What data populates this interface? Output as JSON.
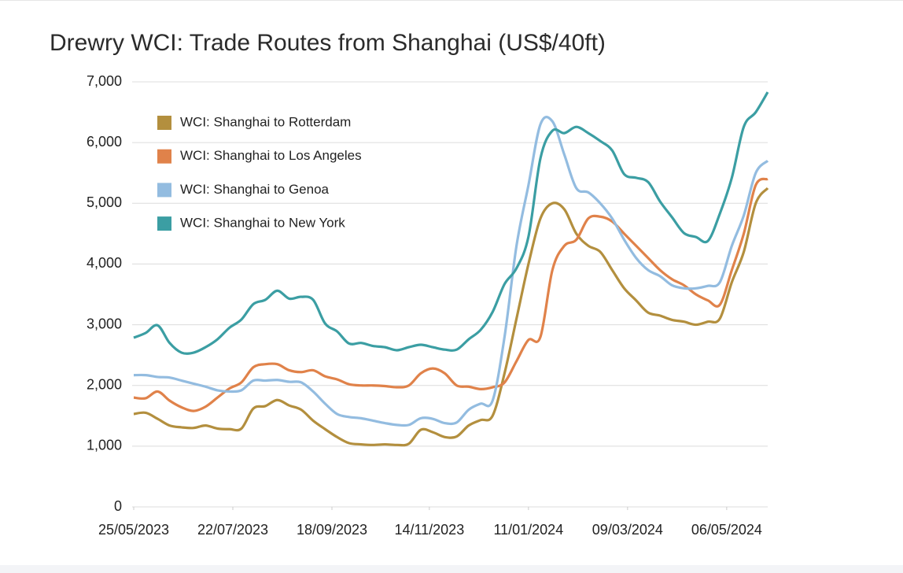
{
  "chart_data": {
    "type": "line",
    "title": "Drewry WCI: Trade Routes from Shanghai (US$/40ft)",
    "x": [
      "2023-05-25",
      "2023-06-01",
      "2023-06-08",
      "2023-06-15",
      "2023-06-22",
      "2023-06-29",
      "2023-07-06",
      "2023-07-13",
      "2023-07-20",
      "2023-07-27",
      "2023-08-03",
      "2023-08-10",
      "2023-08-17",
      "2023-08-24",
      "2023-08-31",
      "2023-09-07",
      "2023-09-14",
      "2023-09-21",
      "2023-09-28",
      "2023-10-05",
      "2023-10-12",
      "2023-10-19",
      "2023-10-26",
      "2023-11-02",
      "2023-11-09",
      "2023-11-16",
      "2023-11-23",
      "2023-11-30",
      "2023-12-07",
      "2023-12-14",
      "2023-12-21",
      "2023-12-28",
      "2024-01-04",
      "2024-01-11",
      "2024-01-18",
      "2024-01-25",
      "2024-02-01",
      "2024-02-08",
      "2024-02-15",
      "2024-02-22",
      "2024-02-29",
      "2024-03-07",
      "2024-03-14",
      "2024-03-21",
      "2024-03-28",
      "2024-04-04",
      "2024-04-11",
      "2024-04-18",
      "2024-04-25",
      "2024-05-02",
      "2024-05-09",
      "2024-05-16",
      "2024-05-23",
      "2024-05-30"
    ],
    "xlim": [
      "2023-05-25",
      "2024-05-30"
    ],
    "xticks": [
      {
        "value": "2023-05-25",
        "label": "25/05/2023"
      },
      {
        "value": "2023-07-22",
        "label": "22/07/2023"
      },
      {
        "value": "2023-09-18",
        "label": "18/09/2023"
      },
      {
        "value": "2023-11-14",
        "label": "14/11/2023"
      },
      {
        "value": "2024-01-11",
        "label": "11/01/2024"
      },
      {
        "value": "2024-03-09",
        "label": "09/03/2024"
      },
      {
        "value": "2024-05-06",
        "label": "06/05/2024"
      }
    ],
    "ylim": [
      0,
      7000
    ],
    "yticks": [
      0,
      {
        "value": 1000,
        "label": "1,000"
      },
      {
        "value": 2000,
        "label": "2,000"
      },
      {
        "value": 3000,
        "label": "3,000"
      },
      {
        "value": 4000,
        "label": "4,000"
      },
      {
        "value": 5000,
        "label": "5,000"
      },
      {
        "value": 6000,
        "label": "6,000"
      },
      {
        "value": 7000,
        "label": "7,000"
      }
    ],
    "grid": true,
    "legend": "upper-left",
    "series": [
      {
        "name": "WCI: Shanghai to Rotterdam",
        "color": "#b38f3e",
        "values": [
          1530,
          1550,
          1450,
          1340,
          1310,
          1300,
          1340,
          1290,
          1280,
          1290,
          1620,
          1660,
          1760,
          1670,
          1600,
          1420,
          1280,
          1150,
          1050,
          1030,
          1020,
          1030,
          1020,
          1040,
          1270,
          1230,
          1150,
          1160,
          1340,
          1430,
          1500,
          2200,
          3100,
          4000,
          4750,
          5000,
          4900,
          4500,
          4300,
          4200,
          3900,
          3600,
          3400,
          3200,
          3150,
          3080,
          3050,
          3000,
          3050,
          3100,
          3700,
          4200,
          5000,
          5250
        ]
      },
      {
        "name": "WCI: Shanghai to Los Angeles",
        "color": "#e0824a",
        "values": [
          1800,
          1790,
          1900,
          1750,
          1640,
          1580,
          1650,
          1800,
          1950,
          2050,
          2300,
          2350,
          2350,
          2250,
          2220,
          2250,
          2150,
          2100,
          2020,
          2000,
          2000,
          1990,
          1970,
          2000,
          2200,
          2280,
          2200,
          2000,
          1980,
          1940,
          1970,
          2050,
          2400,
          2750,
          2800,
          3900,
          4300,
          4400,
          4750,
          4780,
          4700,
          4500,
          4300,
          4100,
          3900,
          3750,
          3650,
          3500,
          3400,
          3330,
          3900,
          4500,
          5300,
          5400
        ]
      },
      {
        "name": "WCI: Shanghai to Genoa",
        "color": "#93bce0",
        "values": [
          2170,
          2170,
          2140,
          2130,
          2080,
          2030,
          1980,
          1920,
          1900,
          1920,
          2080,
          2080,
          2090,
          2060,
          2050,
          1900,
          1700,
          1530,
          1480,
          1460,
          1420,
          1380,
          1350,
          1350,
          1460,
          1450,
          1380,
          1390,
          1600,
          1700,
          1750,
          2800,
          4300,
          5300,
          6300,
          6350,
          5800,
          5250,
          5180,
          5000,
          4750,
          4400,
          4100,
          3900,
          3800,
          3650,
          3600,
          3600,
          3640,
          3700,
          4300,
          4800,
          5500,
          5700
        ]
      },
      {
        "name": "WCI: Shanghai to New York",
        "color": "#3b9ea3",
        "values": [
          2786,
          2865,
          2990,
          2700,
          2540,
          2540,
          2630,
          2760,
          2950,
          3085,
          3340,
          3410,
          3560,
          3430,
          3460,
          3410,
          3020,
          2890,
          2690,
          2700,
          2650,
          2630,
          2580,
          2630,
          2670,
          2630,
          2590,
          2590,
          2760,
          2915,
          3210,
          3670,
          3930,
          4450,
          5740,
          6195,
          6156,
          6259,
          6156,
          6026,
          5870,
          5480,
          5420,
          5350,
          5030,
          4770,
          4510,
          4445,
          4380,
          4830,
          5420,
          6260,
          6500,
          6830
        ]
      }
    ]
  }
}
